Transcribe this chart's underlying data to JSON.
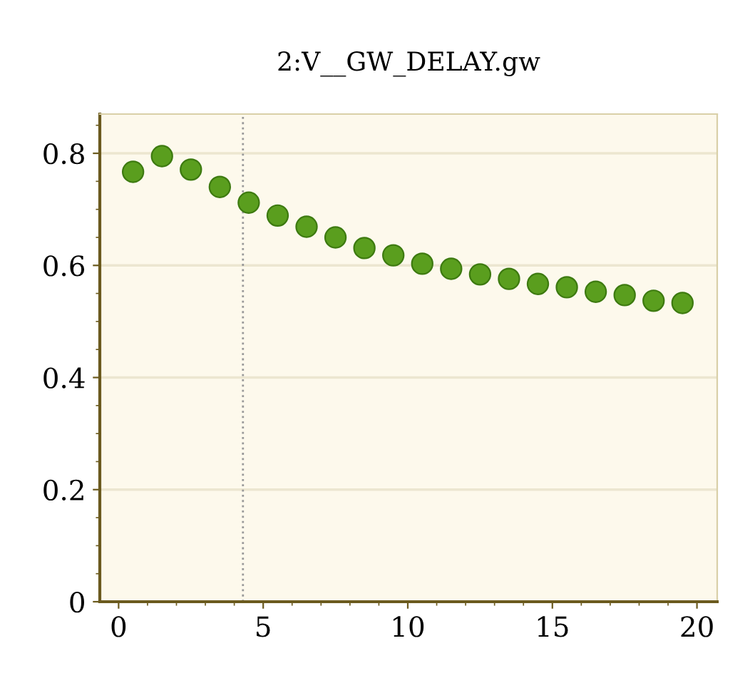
{
  "chart_data": {
    "type": "scatter",
    "title": "2:V__GW_DELAY.gw",
    "x": [
      0.5,
      1.5,
      2.5,
      3.5,
      4.5,
      5.5,
      6.5,
      7.5,
      8.5,
      9.5,
      10.5,
      11.5,
      12.5,
      13.5,
      14.5,
      15.5,
      16.5,
      17.5,
      18.5,
      19.5
    ],
    "series": [
      {
        "color": "#5a9e1e",
        "values": [
          0.767,
          0.795,
          0.771,
          0.74,
          0.712,
          0.689,
          0.669,
          0.65,
          0.631,
          0.618,
          0.603,
          0.594,
          0.584,
          0.576,
          0.567,
          0.561,
          0.553,
          0.547,
          0.537,
          0.533
        ]
      }
    ],
    "xlim": [
      -0.65,
      20.7
    ],
    "ylim": [
      0,
      0.87
    ],
    "xticks": [
      0,
      5,
      10,
      15,
      20
    ],
    "yticks": [
      0,
      0.2,
      0.4,
      0.6,
      0.8
    ],
    "grid": "y",
    "marker": "circle",
    "legend": false,
    "ref_lines": [
      {
        "axis": "x",
        "value": 4.3,
        "color": "#999999",
        "line_style": "dotted"
      }
    ]
  }
}
